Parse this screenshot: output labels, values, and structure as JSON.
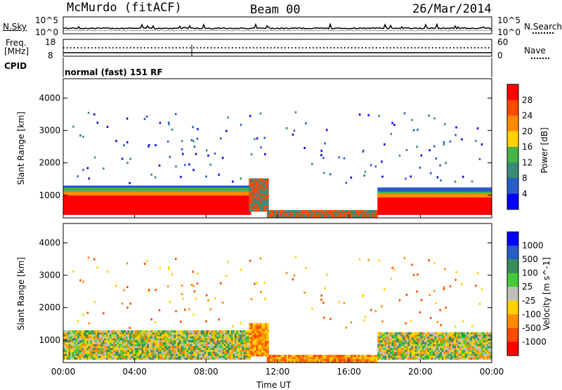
{
  "header": {
    "title": "McMurdo (fitACF)",
    "beam": "Beam 00",
    "date": "26/Mar/2014"
  },
  "colors": {
    "noise_sky": "#000000",
    "noise_search": "#000000",
    "background": "#ffffff"
  },
  "noise_panel": {
    "left_label": "N.Sky",
    "right_label": "N.Search",
    "left_ticks": [
      "10^5",
      "10^0"
    ],
    "right_ticks": [
      "10^5",
      "10^0"
    ]
  },
  "freq_panel": {
    "left_label_1": "Freq.",
    "left_label_2": "[MHz]",
    "left_ticks": [
      "18",
      "8"
    ],
    "right_label": "Nave",
    "right_ticks": [
      "60",
      "0"
    ]
  },
  "cpid": {
    "label": "CPID",
    "mode_text": "normal (fast) 151 RF"
  },
  "chart_data": [
    {
      "type": "heatmap",
      "name": "power",
      "ylabel": "Slant Range [km]",
      "y_ticks": [
        "1000",
        "2000",
        "3000",
        "4000"
      ],
      "ylim": [
        300,
        4600
      ],
      "xlim_hours": [
        0,
        24
      ],
      "colorbar": {
        "label": "Power [dB]",
        "tick_labels": [
          "4",
          "8",
          "12",
          "16",
          "20",
          "24",
          "28"
        ],
        "colors": [
          "#0000ff",
          "#2a5cc8",
          "#3c8a78",
          "#46b446",
          "#ffd200",
          "#ff8c00",
          "#ff4a00",
          "#ff0000"
        ]
      }
    },
    {
      "type": "heatmap",
      "name": "velocity",
      "ylabel": "Slant Range [km]",
      "y_ticks": [
        "1000",
        "2000",
        "3000",
        "4000"
      ],
      "ylim": [
        300,
        4600
      ],
      "xlim_hours": [
        0,
        24
      ],
      "colorbar": {
        "label": "Velocity [m s^-1]",
        "tick_labels": [
          "1000",
          "500",
          "100",
          "25",
          "-25",
          "-100",
          "-500",
          "-1000"
        ],
        "colors": [
          "#0000ff",
          "#2a5cc8",
          "#3c8a5a",
          "#46c83c",
          "#c0c0b8",
          "#ffd200",
          "#ff8c00",
          "#ff4a00",
          "#ff0000"
        ]
      }
    }
  ],
  "x_axis": {
    "label": "Time UT",
    "tick_labels": [
      "00:00",
      "04:00",
      "08:00",
      "12:00",
      "16:00",
      "20:00",
      "00:00"
    ]
  }
}
